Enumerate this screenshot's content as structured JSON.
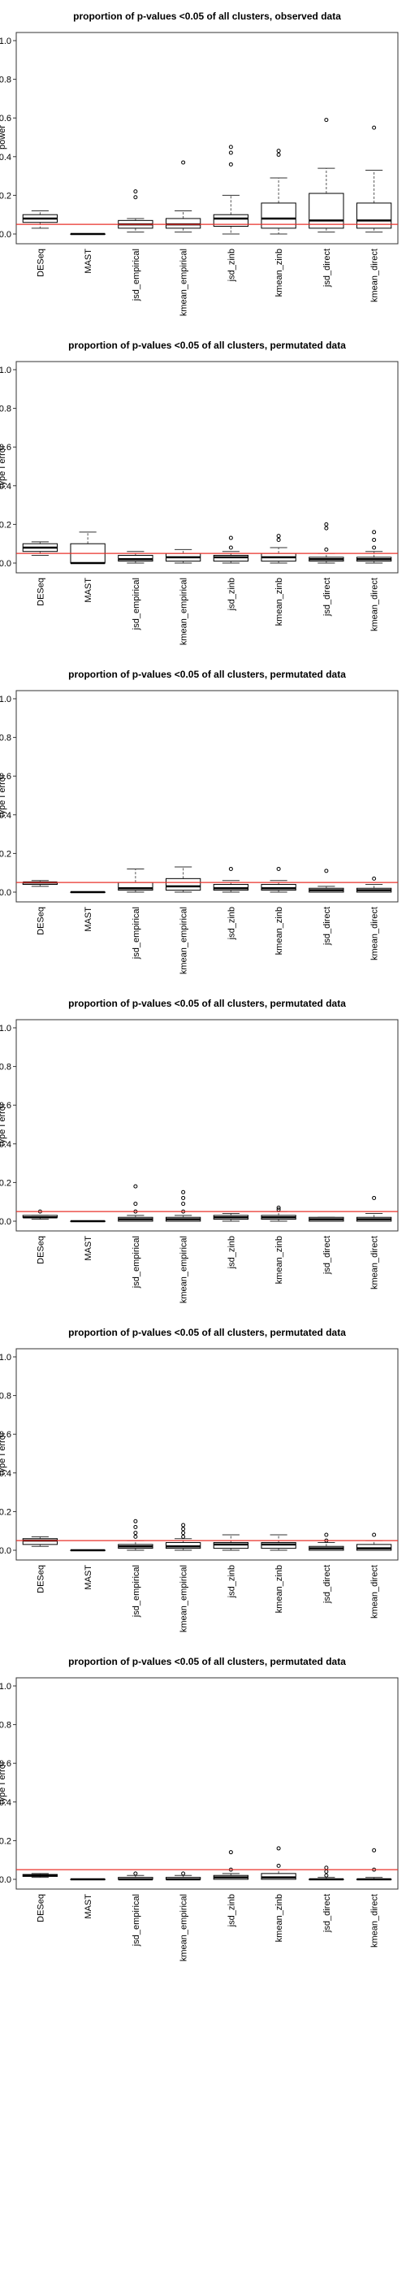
{
  "chart_data": [
    {
      "type": "box",
      "title": "proportion of p-values <0.05 of all clusters, observed data",
      "ylabel": "power",
      "ylim": [
        0,
        1
      ],
      "yticks": [
        0.0,
        0.2,
        0.4,
        0.6,
        0.8,
        1.0
      ],
      "reference_line": 0.05,
      "categories": [
        "DESeq",
        "MAST",
        "jsd_empirical",
        "kmean_empirical",
        "jsd_zinb",
        "kmean_zinb",
        "jsd_direct",
        "kmean_direct"
      ],
      "boxes": [
        {
          "whisker_low": 0.03,
          "q1": 0.06,
          "median": 0.08,
          "q3": 0.1,
          "whisker_high": 0.12,
          "outliers": []
        },
        {
          "whisker_low": 0.0,
          "q1": 0.0,
          "median": 0.0,
          "q3": 0.0,
          "whisker_high": 0.0,
          "outliers": []
        },
        {
          "whisker_low": 0.01,
          "q1": 0.03,
          "median": 0.05,
          "q3": 0.07,
          "whisker_high": 0.08,
          "outliers": [
            0.19,
            0.22
          ]
        },
        {
          "whisker_low": 0.01,
          "q1": 0.03,
          "median": 0.05,
          "q3": 0.08,
          "whisker_high": 0.12,
          "outliers": [
            0.37
          ]
        },
        {
          "whisker_low": 0.0,
          "q1": 0.04,
          "median": 0.08,
          "q3": 0.1,
          "whisker_high": 0.2,
          "outliers": [
            0.36,
            0.42,
            0.45
          ]
        },
        {
          "whisker_low": 0.0,
          "q1": 0.03,
          "median": 0.08,
          "q3": 0.16,
          "whisker_high": 0.29,
          "outliers": [
            0.41,
            0.43
          ]
        },
        {
          "whisker_low": 0.01,
          "q1": 0.03,
          "median": 0.07,
          "q3": 0.21,
          "whisker_high": 0.34,
          "outliers": [
            0.59
          ]
        },
        {
          "whisker_low": 0.01,
          "q1": 0.03,
          "median": 0.07,
          "q3": 0.16,
          "whisker_high": 0.33,
          "outliers": [
            0.55
          ]
        }
      ]
    },
    {
      "type": "box",
      "title": "proportion of p-values <0.05 of all clusters, permutated data",
      "ylabel": "type I error",
      "ylim": [
        0,
        1
      ],
      "yticks": [
        0.0,
        0.2,
        0.4,
        0.6,
        0.8,
        1.0
      ],
      "reference_line": 0.05,
      "categories": [
        "DESeq",
        "MAST",
        "jsd_empirical",
        "kmean_empirical",
        "jsd_zinb",
        "kmean_zinb",
        "jsd_direct",
        "kmean_direct"
      ],
      "boxes": [
        {
          "whisker_low": 0.04,
          "q1": 0.06,
          "median": 0.08,
          "q3": 0.1,
          "whisker_high": 0.11,
          "outliers": []
        },
        {
          "whisker_low": 0.0,
          "q1": 0.0,
          "median": 0.0,
          "q3": 0.1,
          "whisker_high": 0.16,
          "outliers": []
        },
        {
          "whisker_low": 0.0,
          "q1": 0.01,
          "median": 0.02,
          "q3": 0.04,
          "whisker_high": 0.06,
          "outliers": []
        },
        {
          "whisker_low": 0.0,
          "q1": 0.01,
          "median": 0.03,
          "q3": 0.05,
          "whisker_high": 0.07,
          "outliers": []
        },
        {
          "whisker_low": 0.0,
          "q1": 0.01,
          "median": 0.03,
          "q3": 0.04,
          "whisker_high": 0.06,
          "outliers": [
            0.08,
            0.13
          ]
        },
        {
          "whisker_low": 0.0,
          "q1": 0.01,
          "median": 0.03,
          "q3": 0.05,
          "whisker_high": 0.08,
          "outliers": [
            0.12,
            0.14
          ]
        },
        {
          "whisker_low": 0.0,
          "q1": 0.01,
          "median": 0.02,
          "q3": 0.03,
          "whisker_high": 0.05,
          "outliers": [
            0.07,
            0.18,
            0.2
          ]
        },
        {
          "whisker_low": 0.0,
          "q1": 0.01,
          "median": 0.02,
          "q3": 0.03,
          "whisker_high": 0.06,
          "outliers": [
            0.08,
            0.12,
            0.16
          ]
        }
      ]
    },
    {
      "type": "box",
      "title": "proportion of p-values <0.05 of all clusters, permutated data",
      "ylabel": "type I error",
      "ylim": [
        0,
        1
      ],
      "yticks": [
        0.0,
        0.2,
        0.4,
        0.6,
        0.8,
        1.0
      ],
      "reference_line": 0.05,
      "categories": [
        "DESeq",
        "MAST",
        "jsd_empirical",
        "kmean_empirical",
        "jsd_zinb",
        "kmean_zinb",
        "jsd_direct",
        "kmean_direct"
      ],
      "boxes": [
        {
          "whisker_low": 0.03,
          "q1": 0.04,
          "median": 0.05,
          "q3": 0.05,
          "whisker_high": 0.06,
          "outliers": []
        },
        {
          "whisker_low": 0.0,
          "q1": 0.0,
          "median": 0.0,
          "q3": 0.0,
          "whisker_high": 0.0,
          "outliers": []
        },
        {
          "whisker_low": 0.0,
          "q1": 0.01,
          "median": 0.02,
          "q3": 0.05,
          "whisker_high": 0.12,
          "outliers": []
        },
        {
          "whisker_low": 0.0,
          "q1": 0.01,
          "median": 0.03,
          "q3": 0.07,
          "whisker_high": 0.13,
          "outliers": []
        },
        {
          "whisker_low": 0.0,
          "q1": 0.01,
          "median": 0.02,
          "q3": 0.04,
          "whisker_high": 0.06,
          "outliers": [
            0.12
          ]
        },
        {
          "whisker_low": 0.0,
          "q1": 0.01,
          "median": 0.02,
          "q3": 0.04,
          "whisker_high": 0.06,
          "outliers": [
            0.12
          ]
        },
        {
          "whisker_low": 0.0,
          "q1": 0.0,
          "median": 0.01,
          "q3": 0.02,
          "whisker_high": 0.03,
          "outliers": [
            0.11
          ]
        },
        {
          "whisker_low": 0.0,
          "q1": 0.0,
          "median": 0.01,
          "q3": 0.02,
          "whisker_high": 0.04,
          "outliers": [
            0.07
          ]
        }
      ]
    },
    {
      "type": "box",
      "title": "proportion of p-values <0.05 of all clusters, permutated data",
      "ylabel": "type I error",
      "ylim": [
        0,
        1
      ],
      "yticks": [
        0.0,
        0.2,
        0.4,
        0.6,
        0.8,
        1.0
      ],
      "reference_line": 0.05,
      "categories": [
        "DESeq",
        "MAST",
        "jsd_empirical",
        "kmean_empirical",
        "jsd_zinb",
        "kmean_zinb",
        "jsd_direct",
        "kmean_direct"
      ],
      "boxes": [
        {
          "whisker_low": 0.01,
          "q1": 0.02,
          "median": 0.02,
          "q3": 0.03,
          "whisker_high": 0.03,
          "outliers": [
            0.05
          ]
        },
        {
          "whisker_low": 0.0,
          "q1": 0.0,
          "median": 0.0,
          "q3": 0.0,
          "whisker_high": 0.0,
          "outliers": []
        },
        {
          "whisker_low": 0.0,
          "q1": 0.0,
          "median": 0.01,
          "q3": 0.02,
          "whisker_high": 0.03,
          "outliers": [
            0.05,
            0.09,
            0.18
          ]
        },
        {
          "whisker_low": 0.0,
          "q1": 0.0,
          "median": 0.01,
          "q3": 0.02,
          "whisker_high": 0.03,
          "outliers": [
            0.05,
            0.09,
            0.12,
            0.15
          ]
        },
        {
          "whisker_low": 0.0,
          "q1": 0.01,
          "median": 0.02,
          "q3": 0.03,
          "whisker_high": 0.04,
          "outliers": []
        },
        {
          "whisker_low": 0.0,
          "q1": 0.01,
          "median": 0.02,
          "q3": 0.03,
          "whisker_high": 0.05,
          "outliers": [
            0.06,
            0.07
          ]
        },
        {
          "whisker_low": 0.0,
          "q1": 0.0,
          "median": 0.01,
          "q3": 0.02,
          "whisker_high": 0.02,
          "outliers": []
        },
        {
          "whisker_low": 0.0,
          "q1": 0.0,
          "median": 0.01,
          "q3": 0.02,
          "whisker_high": 0.04,
          "outliers": [
            0.12
          ]
        }
      ]
    },
    {
      "type": "box",
      "title": "proportion of p-values <0.05 of all clusters, permutated data",
      "ylabel": "type I error",
      "ylim": [
        0,
        1
      ],
      "yticks": [
        0.0,
        0.2,
        0.4,
        0.6,
        0.8,
        1.0
      ],
      "reference_line": 0.05,
      "categories": [
        "DESeq",
        "MAST",
        "jsd_empirical",
        "kmean_empirical",
        "jsd_zinb",
        "kmean_zinb",
        "jsd_direct",
        "kmean_direct"
      ],
      "boxes": [
        {
          "whisker_low": 0.02,
          "q1": 0.03,
          "median": 0.05,
          "q3": 0.06,
          "whisker_high": 0.07,
          "outliers": []
        },
        {
          "whisker_low": 0.0,
          "q1": 0.0,
          "median": 0.0,
          "q3": 0.0,
          "whisker_high": 0.0,
          "outliers": []
        },
        {
          "whisker_low": 0.0,
          "q1": 0.01,
          "median": 0.02,
          "q3": 0.03,
          "whisker_high": 0.05,
          "outliers": [
            0.07,
            0.09,
            0.12,
            0.15
          ]
        },
        {
          "whisker_low": 0.0,
          "q1": 0.01,
          "median": 0.02,
          "q3": 0.04,
          "whisker_high": 0.06,
          "outliers": [
            0.07,
            0.09,
            0.11,
            0.13
          ]
        },
        {
          "whisker_low": 0.0,
          "q1": 0.01,
          "median": 0.03,
          "q3": 0.04,
          "whisker_high": 0.08,
          "outliers": []
        },
        {
          "whisker_low": 0.0,
          "q1": 0.01,
          "median": 0.03,
          "q3": 0.04,
          "whisker_high": 0.08,
          "outliers": []
        },
        {
          "whisker_low": 0.0,
          "q1": 0.0,
          "median": 0.01,
          "q3": 0.02,
          "whisker_high": 0.04,
          "outliers": [
            0.05,
            0.08
          ]
        },
        {
          "whisker_low": 0.0,
          "q1": 0.0,
          "median": 0.01,
          "q3": 0.03,
          "whisker_high": 0.05,
          "outliers": [
            0.08
          ]
        }
      ]
    },
    {
      "type": "box",
      "title": "proportion of p-values <0.05 of all clusters, permutated data",
      "ylabel": "type I error",
      "ylim": [
        0,
        1
      ],
      "yticks": [
        0.0,
        0.2,
        0.4,
        0.6,
        0.8,
        1.0
      ],
      "reference_line": 0.05,
      "categories": [
        "DESeq",
        "MAST",
        "jsd_empirical",
        "kmean_empirical",
        "jsd_zinb",
        "kmean_zinb",
        "jsd_direct",
        "kmean_direct"
      ],
      "boxes": [
        {
          "whisker_low": 0.01,
          "q1": 0.015,
          "median": 0.02,
          "q3": 0.025,
          "whisker_high": 0.03,
          "outliers": []
        },
        {
          "whisker_low": 0.0,
          "q1": 0.0,
          "median": 0.0,
          "q3": 0.0,
          "whisker_high": 0.0,
          "outliers": []
        },
        {
          "whisker_low": 0.0,
          "q1": 0.0,
          "median": 0.0,
          "q3": 0.01,
          "whisker_high": 0.02,
          "outliers": [
            0.03
          ]
        },
        {
          "whisker_low": 0.0,
          "q1": 0.0,
          "median": 0.0,
          "q3": 0.01,
          "whisker_high": 0.02,
          "outliers": [
            0.03
          ]
        },
        {
          "whisker_low": 0.0,
          "q1": 0.0,
          "median": 0.01,
          "q3": 0.02,
          "whisker_high": 0.03,
          "outliers": [
            0.05,
            0.14
          ]
        },
        {
          "whisker_low": 0.0,
          "q1": 0.0,
          "median": 0.01,
          "q3": 0.03,
          "whisker_high": 0.05,
          "outliers": [
            0.07,
            0.16
          ]
        },
        {
          "whisker_low": 0.0,
          "q1": 0.0,
          "median": 0.0,
          "q3": 0.0,
          "whisker_high": 0.01,
          "outliers": [
            0.02,
            0.04,
            0.06
          ]
        },
        {
          "whisker_low": 0.0,
          "q1": 0.0,
          "median": 0.0,
          "q3": 0.0,
          "whisker_high": 0.01,
          "outliers": [
            0.05,
            0.15
          ]
        }
      ]
    }
  ],
  "style": {
    "reference_line_color": "#e8302a",
    "box_stroke_color": "#000000",
    "whisker_color": "#555555",
    "background": "#ffffff"
  }
}
